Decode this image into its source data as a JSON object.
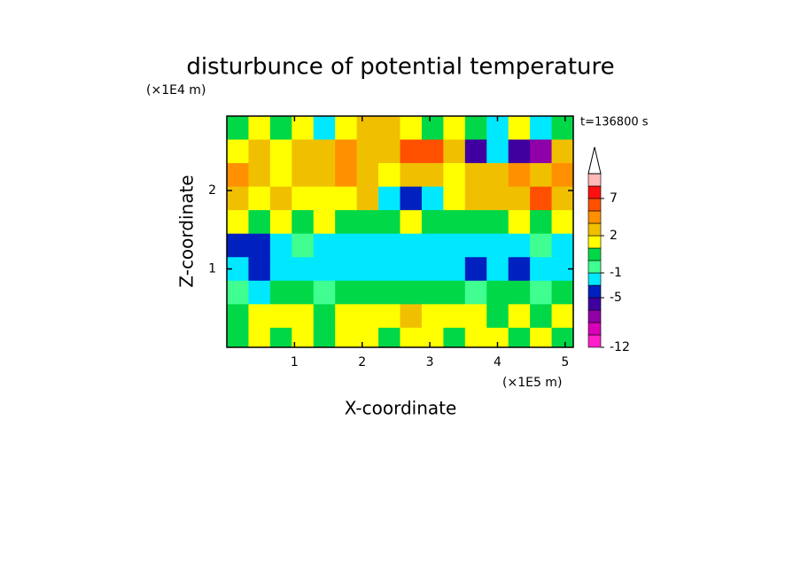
{
  "chart_data": {
    "type": "contour",
    "title": "disturbunce of potential temperature",
    "y_unit_label": "(×1E4 m)",
    "x_unit_label": "(×1E5 m)",
    "x_label": "X-coordinate",
    "y_label": "Z-coordinate",
    "time_label": "t=136800 s",
    "xlim": [
      0,
      5.12
    ],
    "xticks": [
      1,
      2,
      3,
      4,
      5
    ],
    "ylim": [
      0,
      2.95
    ],
    "yticks": [
      1,
      2
    ],
    "x": [
      0.16,
      0.48,
      0.8,
      1.12,
      1.44,
      1.76,
      2.08,
      2.4,
      2.72,
      3.04,
      3.36,
      3.68,
      4.0,
      4.32,
      4.64,
      4.96
    ],
    "y": [
      2.8,
      2.5,
      2.2,
      1.9,
      1.6,
      1.3,
      1.0,
      0.7,
      0.4,
      0.1
    ],
    "z": [
      [
        0.5,
        1.5,
        0.5,
        1.5,
        -2,
        1.5,
        3,
        3,
        1.5,
        0.5,
        1.5,
        0.5,
        -2,
        1.5,
        -2,
        0.5
      ],
      [
        1.5,
        3,
        1.5,
        3,
        3,
        5,
        3,
        3,
        6.5,
        6.5,
        3,
        -5.5,
        -2,
        -5.5,
        -7,
        3
      ],
      [
        5,
        3,
        1.5,
        3,
        3,
        5,
        3,
        1.5,
        3,
        3,
        1.5,
        3,
        3,
        5,
        3,
        5
      ],
      [
        3,
        1.5,
        3,
        1.5,
        1.5,
        1.5,
        3,
        -2,
        -4,
        -2,
        1.5,
        3,
        3,
        3,
        6.5,
        3
      ],
      [
        1.5,
        0.5,
        1.5,
        0.5,
        1.5,
        0.5,
        0.5,
        0.5,
        1.5,
        0.5,
        0.5,
        0.5,
        0.5,
        1.5,
        0.5,
        1.5
      ],
      [
        -4,
        -4,
        -2,
        -0.5,
        -2,
        -2,
        -2,
        -2,
        -2,
        -2,
        -2,
        -2,
        -2,
        -2,
        -0.5,
        -2
      ],
      [
        -2,
        -4,
        -2,
        -2,
        -2,
        -2,
        -2,
        -2,
        -2,
        -2,
        -2,
        -4,
        -2,
        -4,
        -2,
        -2
      ],
      [
        -0.5,
        -2,
        0.5,
        0.5,
        -0.5,
        0.5,
        0.5,
        0.5,
        0.5,
        0.5,
        0.5,
        -0.5,
        0.5,
        0.5,
        -0.5,
        0.5
      ],
      [
        0.5,
        1.5,
        1.5,
        1.5,
        0.5,
        1.5,
        1.5,
        1.5,
        3,
        1.5,
        1.5,
        1.5,
        0.5,
        1.5,
        0.5,
        1.5
      ],
      [
        0.5,
        1.5,
        0.5,
        1.5,
        0.5,
        1.5,
        1.5,
        0.5,
        1.5,
        1.5,
        0.5,
        1.5,
        1.5,
        0.5,
        1.5,
        0.5
      ]
    ],
    "colorbar": {
      "levels": [
        -12,
        -10,
        -8,
        -6,
        -5,
        -3,
        -1,
        0,
        1,
        2,
        4,
        6,
        7,
        9,
        11
      ],
      "colors": [
        "#ff20c8",
        "#d800b8",
        "#9000a8",
        "#4000a0",
        "#0020c0",
        "#00e8ff",
        "#40ff90",
        "#00d848",
        "#ffff00",
        "#f0c000",
        "#ff9000",
        "#ff5000",
        "#ff1010",
        "#ffb8b8"
      ],
      "extend_color": "#ffffff",
      "ticks": [
        -12,
        -5,
        -1,
        2,
        7
      ]
    }
  }
}
